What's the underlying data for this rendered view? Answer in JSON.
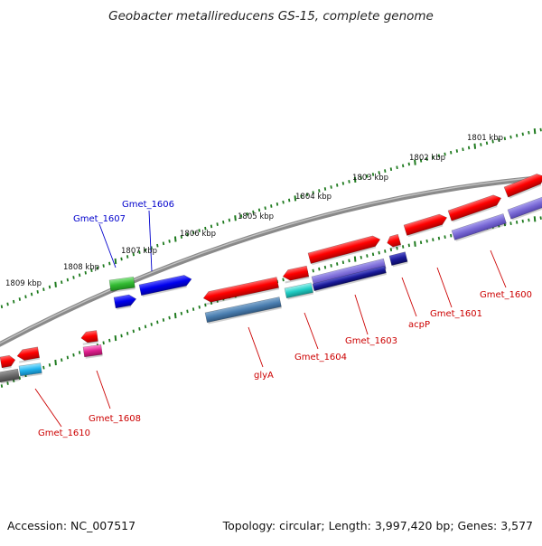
{
  "title": "Geobacter metallireducens GS-15, complete genome",
  "footer": {
    "accession": "Accession: NC_007517",
    "summary": "Topology: circular; Length: 3,997,420 bp; Genes: 3,577"
  },
  "colors": {
    "backbone": "#7d7d7d",
    "tick": "#1e7a1e",
    "label_red": "#cc0000",
    "label_blue": "#0000cc"
  },
  "scale_labels": [
    "1809 kbp",
    "1808 kbp",
    "1807 kbp",
    "1806 kbp",
    "1805 kbp",
    "1804 kbp",
    "1803 kbp",
    "1802 kbp",
    "1801 kbp"
  ],
  "gene_labels": [
    {
      "text": "Gmet_1606",
      "color": "blue"
    },
    {
      "text": "Gmet_1607",
      "color": "blue"
    },
    {
      "text": "Gmet_1600",
      "color": "red"
    },
    {
      "text": "Gmet_1601",
      "color": "red"
    },
    {
      "text": "acpP",
      "color": "red"
    },
    {
      "text": "Gmet_1603",
      "color": "red"
    },
    {
      "text": "Gmet_1604",
      "color": "red"
    },
    {
      "text": "glyA",
      "color": "red"
    },
    {
      "text": "Gmet_1608",
      "color": "red"
    },
    {
      "text": "Gmet_1610",
      "color": "red"
    }
  ]
}
